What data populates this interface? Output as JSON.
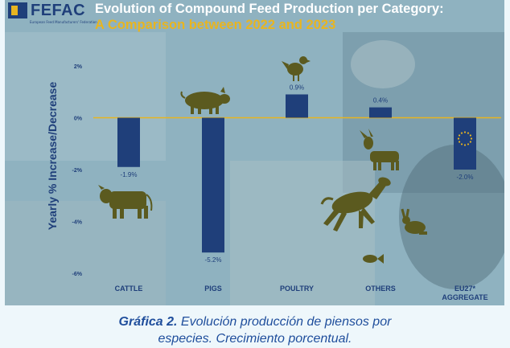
{
  "header": {
    "logo_text": "FEFAC",
    "logo_subtitle": "European Feed Manufacturers' Federation",
    "title_line1": "Evolution of Compound Feed Production per Category:",
    "title_line2": "A Comparison between 2022 and 2023"
  },
  "caption": {
    "lead": "Gráfica 2.",
    "line1_rest": " Evolución producción de piensos por",
    "line2": "especies. Crecimiento porcentual."
  },
  "colors": {
    "bar": "#1f3f7a",
    "accent": "#e8b520",
    "icon": "#5b5a1f",
    "zero_line": "#e8b520",
    "caption": "#1f4e9c"
  },
  "icons": [
    "logo",
    "pig-icon",
    "chicken-icon",
    "cow-icon",
    "goat-icon",
    "horse-icon",
    "rabbit-icon",
    "fish-icon",
    "eu-flag-icon"
  ],
  "chart_data": {
    "type": "bar",
    "ylabel": "Yearly % Increase/Decrease",
    "ylim": [
      -6,
      2
    ],
    "yticks": [
      2,
      0,
      -2,
      -4,
      -6
    ],
    "ytick_labels": [
      "2%",
      "0%",
      "-2%",
      "-4%",
      "-6%"
    ],
    "categories": [
      "CATTLE",
      "PIGS",
      "POULTRY",
      "OTHERS",
      "EU27* AGGREGATE"
    ],
    "category_labels": [
      [
        "CATTLE"
      ],
      [
        "PIGS"
      ],
      [
        "POULTRY"
      ],
      [
        "OTHERS"
      ],
      [
        "EU27*",
        "AGGREGATE"
      ]
    ],
    "values": [
      -1.9,
      -5.2,
      0.9,
      0.4,
      -2.0
    ],
    "data_labels": [
      "-1.9%",
      "-5.2%",
      "0.9%",
      "0.4%",
      "-2.0%"
    ],
    "grid": false
  }
}
